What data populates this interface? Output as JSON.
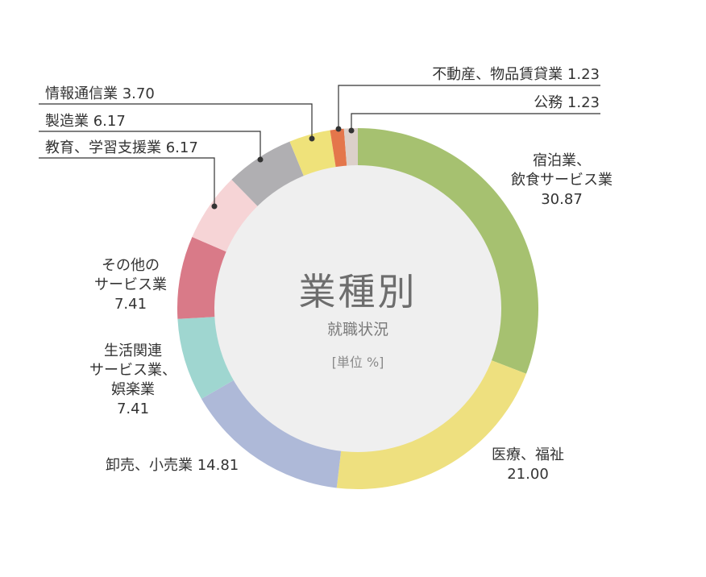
{
  "chart_data": {
    "type": "pie",
    "title": "業種別",
    "subtitle": "就職状況",
    "unit_label": "[単位 %]",
    "slices": [
      {
        "label": "宿泊業、飲食サービス業",
        "value": 30.87,
        "color": "#a6c170"
      },
      {
        "label": "医療、福祉",
        "value": 21.0,
        "color": "#eee07f"
      },
      {
        "label": "卸売、小売業",
        "value": 14.81,
        "color": "#aeb9d8"
      },
      {
        "label": "生活関連サービス業、娯楽業",
        "value": 7.41,
        "color": "#9fd6d0"
      },
      {
        "label": "その他のサービス業",
        "value": 7.41,
        "color": "#d97a88"
      },
      {
        "label": "教育、学習支援業",
        "value": 6.17,
        "color": "#f6d4d6"
      },
      {
        "label": "製造業",
        "value": 6.17,
        "color": "#b0afb2"
      },
      {
        "label": "情報通信業",
        "value": 3.7,
        "color": "#efe27a"
      },
      {
        "label": "不動産、物品賃貸業",
        "value": 1.23,
        "color": "#e4764b"
      },
      {
        "label": "公務",
        "value": 1.23,
        "color": "#dcd0ca"
      }
    ],
    "inner_color": "#efefef"
  },
  "labels": {
    "shukuhaku": {
      "line1": "宿泊業、",
      "line2": "飲食サービス業",
      "value": "30.87"
    },
    "iryo": {
      "line1": "医療、福祉",
      "value": "21.00"
    },
    "oroshi": {
      "text": "卸売、小売業 14.81"
    },
    "seikatsu": {
      "line1": "生活関連",
      "line2": "サービス業、",
      "line3": "娯楽業",
      "value": "7.41"
    },
    "sonota": {
      "line1": "その他の",
      "line2": "サービス業",
      "value": "7.41"
    },
    "kyoiku": {
      "text": "教育、学習支援業 6.17"
    },
    "seizo": {
      "text": "製造業 6.17"
    },
    "joho": {
      "text": "情報通信業 3.70"
    },
    "fudosan": {
      "text": "不動産、物品賃貸業 1.23"
    },
    "komu": {
      "text": "公務 1.23"
    }
  }
}
